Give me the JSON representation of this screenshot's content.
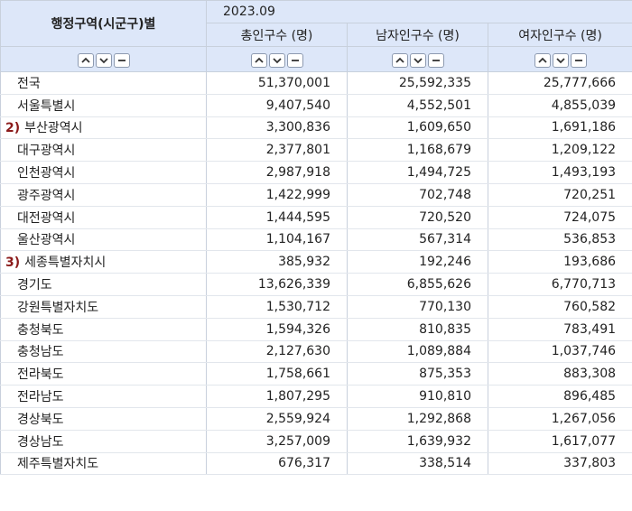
{
  "header": {
    "region_col": "행정구역(시군구)별",
    "period": "2023.09",
    "columns": [
      "총인구수 (명)",
      "남자인구수 (명)",
      "여자인구수 (명)"
    ]
  },
  "rows": [
    {
      "note": "",
      "name": "전국",
      "total": "51,370,001",
      "male": "25,592,335",
      "female": "25,777,666"
    },
    {
      "note": "",
      "name": "서울특별시",
      "total": "9,407,540",
      "male": "4,552,501",
      "female": "4,855,039"
    },
    {
      "note": "2)",
      "name": "부산광역시",
      "total": "3,300,836",
      "male": "1,609,650",
      "female": "1,691,186"
    },
    {
      "note": "",
      "name": "대구광역시",
      "total": "2,377,801",
      "male": "1,168,679",
      "female": "1,209,122"
    },
    {
      "note": "",
      "name": "인천광역시",
      "total": "2,987,918",
      "male": "1,494,725",
      "female": "1,493,193"
    },
    {
      "note": "",
      "name": "광주광역시",
      "total": "1,422,999",
      "male": "702,748",
      "female": "720,251"
    },
    {
      "note": "",
      "name": "대전광역시",
      "total": "1,444,595",
      "male": "720,520",
      "female": "724,075"
    },
    {
      "note": "",
      "name": "울산광역시",
      "total": "1,104,167",
      "male": "567,314",
      "female": "536,853"
    },
    {
      "note": "3)",
      "name": "세종특별자치시",
      "total": "385,932",
      "male": "192,246",
      "female": "193,686"
    },
    {
      "note": "",
      "name": "경기도",
      "total": "13,626,339",
      "male": "6,855,626",
      "female": "6,770,713"
    },
    {
      "note": "",
      "name": "강원특별자치도",
      "total": "1,530,712",
      "male": "770,130",
      "female": "760,582"
    },
    {
      "note": "",
      "name": "충청북도",
      "total": "1,594,326",
      "male": "810,835",
      "female": "783,491"
    },
    {
      "note": "",
      "name": "충청남도",
      "total": "2,127,630",
      "male": "1,089,884",
      "female": "1,037,746"
    },
    {
      "note": "",
      "name": "전라북도",
      "total": "1,758,661",
      "male": "875,353",
      "female": "883,308"
    },
    {
      "note": "",
      "name": "전라남도",
      "total": "1,807,295",
      "male": "910,810",
      "female": "896,485"
    },
    {
      "note": "",
      "name": "경상북도",
      "total": "2,559,924",
      "male": "1,292,868",
      "female": "1,267,056"
    },
    {
      "note": "",
      "name": "경상남도",
      "total": "3,257,009",
      "male": "1,639,932",
      "female": "1,617,077"
    },
    {
      "note": "",
      "name": "제주특별자치도",
      "total": "676,317",
      "male": "338,514",
      "female": "337,803"
    }
  ],
  "icons": {
    "sort_asc": "chevron-up-icon",
    "sort_desc": "chevron-down-icon",
    "remove": "minus-icon"
  },
  "colors": {
    "header_bg": "#dde7f9",
    "note": "#8b1a1a",
    "border": "#c8d0dc"
  }
}
